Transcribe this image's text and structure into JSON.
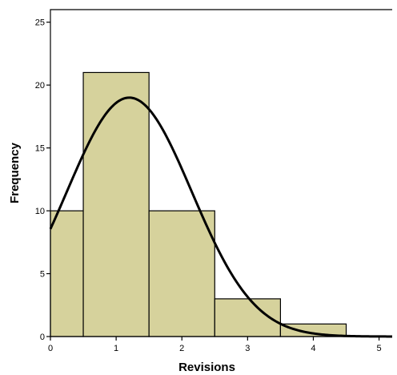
{
  "chart_data": {
    "type": "bar",
    "xlabel": "Revisions",
    "ylabel": "Frequency",
    "xlim": [
      0,
      5.2
    ],
    "ylim": [
      0,
      26
    ],
    "xticks": [
      0,
      1,
      2,
      3,
      4,
      5
    ],
    "yticks": [
      0,
      5,
      10,
      15,
      20,
      25
    ],
    "bin_width": 1,
    "bin_centers": [
      0,
      1,
      2,
      3,
      4
    ],
    "values": [
      10,
      21,
      10,
      3,
      1
    ],
    "normal_curve": {
      "mean": 1.2,
      "sd": 0.95,
      "peak": 19
    },
    "colors": {
      "bar_fill": "#d6d29c",
      "bar_stroke": "#000000",
      "curve": "#000000"
    }
  }
}
